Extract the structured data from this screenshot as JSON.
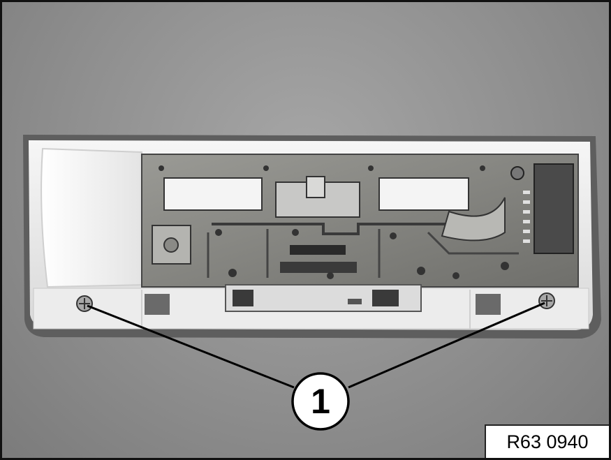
{
  "figure": {
    "callout_label": "1",
    "reference_code": "R63 0940"
  },
  "colors": {
    "background": "#8f8f8f",
    "housing": "#eeeeee",
    "circuit_board": "#8a8a86",
    "callout_stroke": "#000000"
  },
  "icons": [
    "screw-icon",
    "connector-icon"
  ]
}
